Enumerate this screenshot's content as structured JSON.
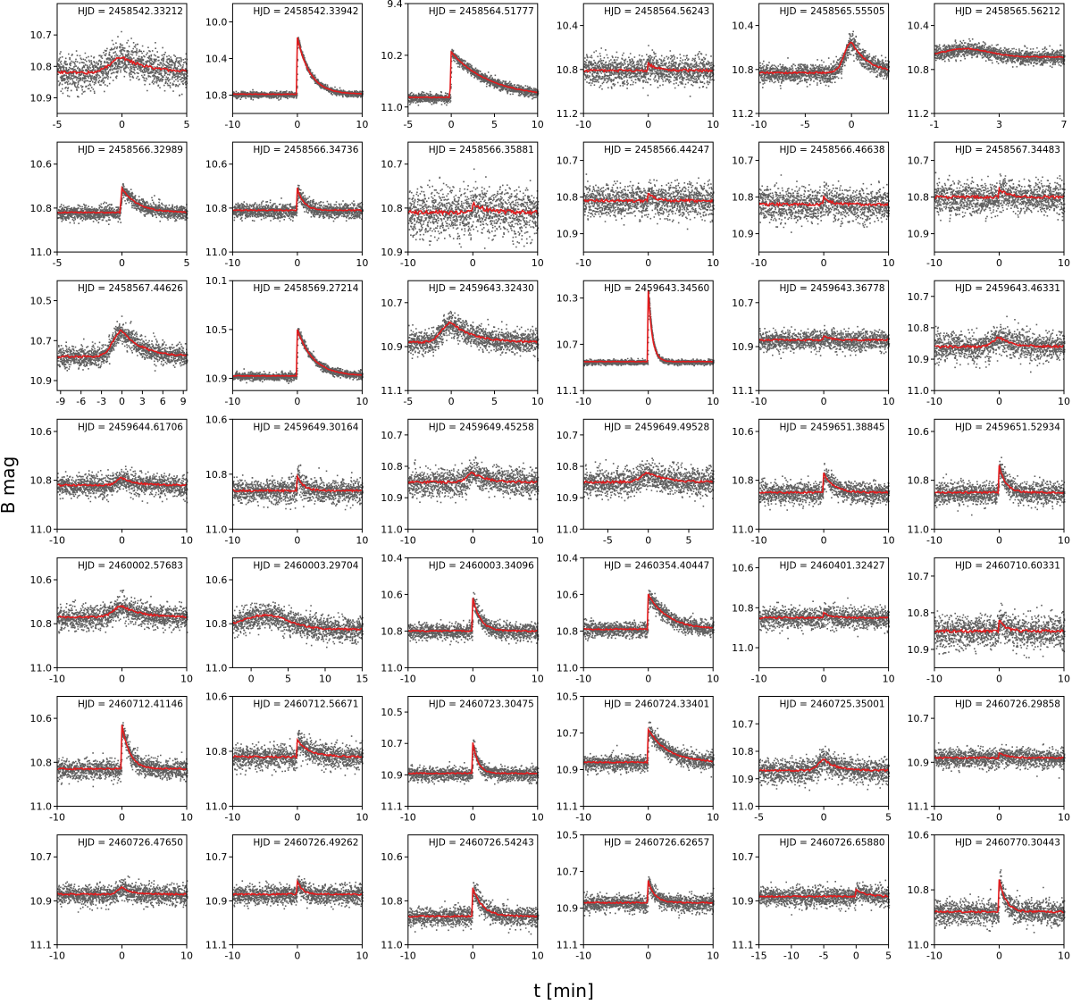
{
  "chart_data": {
    "type": "scatter",
    "ylabel": "B mag",
    "xlabel": "t [min]",
    "y_inverted": true,
    "grid": false,
    "colors": {
      "points": "#5f5f5f",
      "smooth_line": "#e31a1c",
      "frame": "#000000"
    },
    "panels": [
      {
        "label": "HJD = 2458542.33212",
        "xlim": [
          -5,
          5
        ],
        "xticks": [
          -5,
          0,
          5
        ],
        "ylim": [
          10.6,
          10.95
        ],
        "yticks": [
          10.7,
          10.8,
          10.9
        ],
        "base": 10.82,
        "peak": 0.05,
        "scatter": 0.05,
        "shape": "slow",
        "decay": 2.0
      },
      {
        "label": "HJD = 2458542.33942",
        "xlim": [
          -10,
          10
        ],
        "xticks": [
          -10,
          0,
          10
        ],
        "ylim": [
          9.8,
          11.0
        ],
        "yticks": [
          10.0,
          10.4,
          10.8
        ],
        "base": 10.79,
        "peak": 0.62,
        "scatter": 0.03,
        "shape": "fast",
        "decay": 2.0
      },
      {
        "label": "HJD = 2458564.51777",
        "xlim": [
          -5,
          10
        ],
        "xticks": [
          -5,
          0,
          5,
          10
        ],
        "ylim": [
          9.4,
          11.1
        ],
        "yticks": [
          9.4,
          10.2,
          11.0
        ],
        "base": 10.85,
        "peak": 0.7,
        "scatter": 0.07,
        "shape": "fast",
        "decay": 4.5
      },
      {
        "label": "HJD = 2458564.56243",
        "xlim": [
          -10,
          10
        ],
        "xticks": [
          -10,
          0,
          10
        ],
        "ylim": [
          10.2,
          11.2
        ],
        "yticks": [
          10.4,
          10.8,
          11.2
        ],
        "base": 10.81,
        "peak": 0.06,
        "scatter": 0.12,
        "shape": "fast",
        "decay": 1.5
      },
      {
        "label": "HJD = 2458565.55505",
        "xlim": [
          -10,
          4
        ],
        "xticks": [
          -10,
          -5,
          0
        ],
        "ylim": [
          10.2,
          11.2
        ],
        "yticks": [
          10.4,
          10.8,
          11.2
        ],
        "base": 10.83,
        "peak": 0.28,
        "scatter": 0.08,
        "shape": "slow",
        "decay": 1.8
      },
      {
        "label": "HJD = 2458565.56212",
        "xlim": [
          -1,
          7
        ],
        "xticks": [
          -1,
          3,
          7
        ],
        "ylim": [
          10.2,
          11.2
        ],
        "yticks": [
          10.4,
          10.8,
          11.2
        ],
        "base": 10.68,
        "peak": 0.07,
        "scatter": 0.06,
        "shape": "slope",
        "decay": 0
      },
      {
        "label": "HJD = 2458566.32989",
        "xlim": [
          -5,
          5
        ],
        "xticks": [
          -5,
          0,
          5
        ],
        "ylim": [
          10.5,
          11.0
        ],
        "yticks": [
          10.6,
          10.8,
          11.0
        ],
        "base": 10.82,
        "peak": 0.11,
        "scatter": 0.03,
        "shape": "fast",
        "decay": 1.2
      },
      {
        "label": "HJD = 2458566.34736",
        "xlim": [
          -10,
          10
        ],
        "xticks": [
          -10,
          0,
          10
        ],
        "ylim": [
          10.5,
          11.0
        ],
        "yticks": [
          10.6,
          10.8,
          11.0
        ],
        "base": 10.81,
        "peak": 0.1,
        "scatter": 0.03,
        "shape": "fast",
        "decay": 1.0
      },
      {
        "label": "HJD = 2458566.35881",
        "xlim": [
          -10,
          10
        ],
        "xticks": [
          -10,
          0,
          10
        ],
        "ylim": [
          10.65,
          10.9
        ],
        "yticks": [
          10.7,
          10.8,
          10.9
        ],
        "base": 10.81,
        "peak": 0.02,
        "scatter": 0.05,
        "shape": "fast",
        "decay": 2.0
      },
      {
        "label": "HJD = 2458566.44247",
        "xlim": [
          -10,
          10
        ],
        "xticks": [
          -10,
          0,
          10
        ],
        "ylim": [
          10.65,
          10.95
        ],
        "yticks": [
          10.7,
          10.8,
          10.9
        ],
        "base": 10.81,
        "peak": 0.02,
        "scatter": 0.04,
        "shape": "fast",
        "decay": 1.0
      },
      {
        "label": "HJD = 2458566.46638",
        "xlim": [
          -10,
          10
        ],
        "xticks": [
          -10,
          0,
          10
        ],
        "ylim": [
          10.65,
          10.95
        ],
        "yticks": [
          10.7,
          10.8,
          10.9
        ],
        "base": 10.82,
        "peak": 0.02,
        "scatter": 0.04,
        "shape": "fast",
        "decay": 1.0
      },
      {
        "label": "HJD = 2458567.34483",
        "xlim": [
          -10,
          10
        ],
        "xticks": [
          -10,
          0,
          10
        ],
        "ylim": [
          10.65,
          10.95
        ],
        "yticks": [
          10.7,
          10.8,
          10.9
        ],
        "base": 10.8,
        "peak": 0.02,
        "scatter": 0.04,
        "shape": "fast",
        "decay": 1.5
      },
      {
        "label": "HJD = 2458567.44626",
        "xlim": [
          -9.5,
          9.5
        ],
        "xticks": [
          -9,
          -6,
          -3,
          0,
          3,
          6,
          9
        ],
        "ylim": [
          10.4,
          10.95
        ],
        "yticks": [
          10.5,
          10.7,
          10.9
        ],
        "base": 10.78,
        "peak": 0.13,
        "scatter": 0.05,
        "shape": "slow",
        "decay": 3.0
      },
      {
        "label": "HJD = 2458569.27214",
        "xlim": [
          -10,
          10
        ],
        "xticks": [
          -10,
          0,
          10
        ],
        "ylim": [
          10.1,
          11.0
        ],
        "yticks": [
          10.1,
          10.5,
          10.9
        ],
        "base": 10.88,
        "peak": 0.38,
        "scatter": 0.03,
        "shape": "fast",
        "decay": 2.5
      },
      {
        "label": "HJD = 2459643.32430",
        "xlim": [
          -5,
          10
        ],
        "xticks": [
          -5,
          0,
          5,
          10
        ],
        "ylim": [
          10.6,
          11.1
        ],
        "yticks": [
          10.7,
          10.9,
          11.1
        ],
        "base": 10.88,
        "peak": 0.09,
        "scatter": 0.05,
        "shape": "slow",
        "decay": 2.5
      },
      {
        "label": "HJD = 2459643.34560",
        "xlim": [
          -10,
          10
        ],
        "xticks": [
          -10,
          0,
          10
        ],
        "ylim": [
          10.15,
          11.1
        ],
        "yticks": [
          10.3,
          10.7,
          11.1
        ],
        "base": 10.85,
        "peak": 0.62,
        "scatter": 0.02,
        "shape": "fast",
        "decay": 0.6
      },
      {
        "label": "HJD = 2459643.36778",
        "xlim": [
          -10,
          10
        ],
        "xticks": [
          -10,
          0,
          10
        ],
        "ylim": [
          10.6,
          11.1
        ],
        "yticks": [
          10.7,
          10.9,
          11.1
        ],
        "base": 10.87,
        "peak": 0.02,
        "scatter": 0.04,
        "shape": "fast",
        "decay": 1.0
      },
      {
        "label": "HJD = 2459643.46331",
        "xlim": [
          -10,
          10
        ],
        "xticks": [
          -10,
          0,
          10
        ],
        "ylim": [
          10.65,
          11.0
        ],
        "yticks": [
          10.7,
          10.8,
          10.9,
          11.0
        ],
        "base": 10.86,
        "peak": 0.03,
        "scatter": 0.04,
        "shape": "slow",
        "decay": 2.0
      },
      {
        "label": "HJD = 2459644.61706",
        "xlim": [
          -10,
          10
        ],
        "xticks": [
          -10,
          0,
          10
        ],
        "ylim": [
          10.55,
          11.0
        ],
        "yticks": [
          10.6,
          10.8,
          11.0
        ],
        "base": 10.82,
        "peak": 0.03,
        "scatter": 0.04,
        "shape": "slow",
        "decay": 2.0
      },
      {
        "label": "HJD = 2459649.30164",
        "xlim": [
          -10,
          10
        ],
        "xticks": [
          -10,
          0,
          10
        ],
        "ylim": [
          10.6,
          11.0
        ],
        "yticks": [
          10.6,
          10.8,
          11.0
        ],
        "base": 10.86,
        "peak": 0.05,
        "scatter": 0.04,
        "shape": "fast",
        "decay": 1.0
      },
      {
        "label": "HJD = 2459649.45258",
        "xlim": [
          -10,
          10
        ],
        "xticks": [
          -10,
          0,
          10
        ],
        "ylim": [
          10.65,
          11.0
        ],
        "yticks": [
          10.7,
          10.8,
          10.9,
          11.0
        ],
        "base": 10.85,
        "peak": 0.03,
        "scatter": 0.04,
        "shape": "slow",
        "decay": 2.0
      },
      {
        "label": "HJD = 2459649.49528",
        "xlim": [
          -8,
          8
        ],
        "xticks": [
          -5,
          0,
          5
        ],
        "ylim": [
          10.65,
          11.0
        ],
        "yticks": [
          10.7,
          10.8,
          10.9,
          11.0
        ],
        "base": 10.85,
        "peak": 0.03,
        "scatter": 0.04,
        "shape": "slow",
        "decay": 2.0
      },
      {
        "label": "HJD = 2459651.38845",
        "xlim": [
          -10,
          10
        ],
        "xticks": [
          -10,
          0,
          10
        ],
        "ylim": [
          10.55,
          11.0
        ],
        "yticks": [
          10.6,
          10.8,
          11.0
        ],
        "base": 10.85,
        "peak": 0.08,
        "scatter": 0.04,
        "shape": "fast",
        "decay": 1.5
      },
      {
        "label": "HJD = 2459651.52934",
        "xlim": [
          -10,
          10
        ],
        "xticks": [
          -10,
          0,
          10
        ],
        "ylim": [
          10.55,
          11.0
        ],
        "yticks": [
          10.6,
          10.8,
          11.0
        ],
        "base": 10.85,
        "peak": 0.11,
        "scatter": 0.04,
        "shape": "fast",
        "decay": 1.0
      },
      {
        "label": "HJD = 2460002.57683",
        "xlim": [
          -10,
          10
        ],
        "xticks": [
          -10,
          0,
          10
        ],
        "ylim": [
          10.5,
          11.0
        ],
        "yticks": [
          10.6,
          10.8,
          11.0
        ],
        "base": 10.77,
        "peak": 0.05,
        "scatter": 0.05,
        "shape": "slow",
        "decay": 3.0
      },
      {
        "label": "HJD = 2460003.29704",
        "xlim": [
          -2.5,
          15
        ],
        "xticks": [
          0,
          5,
          10,
          15
        ],
        "ylim": [
          10.5,
          11.0
        ],
        "yticks": [
          10.6,
          10.8,
          11.0
        ],
        "base": 10.82,
        "peak": 0.06,
        "scatter": 0.05,
        "shape": "slope",
        "decay": 0
      },
      {
        "label": "HJD = 2460003.34096",
        "xlim": [
          -10,
          10
        ],
        "xticks": [
          -10,
          0,
          10
        ],
        "ylim": [
          10.4,
          11.0
        ],
        "yticks": [
          10.4,
          10.6,
          10.8,
          11.0
        ],
        "base": 10.8,
        "peak": 0.18,
        "scatter": 0.04,
        "shape": "fast",
        "decay": 1.2
      },
      {
        "label": "HJD = 2460354.40447",
        "xlim": [
          -10,
          10
        ],
        "xticks": [
          -10,
          0,
          10
        ],
        "ylim": [
          10.4,
          11.0
        ],
        "yticks": [
          10.4,
          10.6,
          10.8,
          11.0
        ],
        "base": 10.79,
        "peak": 0.19,
        "scatter": 0.04,
        "shape": "fast",
        "decay": 3.0
      },
      {
        "label": "HJD = 2460401.32427",
        "xlim": [
          -10,
          10
        ],
        "xticks": [
          -10,
          0,
          10
        ],
        "ylim": [
          10.55,
          11.1
        ],
        "yticks": [
          10.6,
          10.8,
          11.0
        ],
        "base": 10.85,
        "peak": 0.03,
        "scatter": 0.05,
        "shape": "fast",
        "decay": 1.0
      },
      {
        "label": "HJD = 2460710.60331",
        "xlim": [
          -10,
          10
        ],
        "xticks": [
          -10,
          0,
          10
        ],
        "ylim": [
          10.65,
          10.95
        ],
        "yticks": [
          10.7,
          10.8,
          10.9
        ],
        "base": 10.85,
        "peak": 0.03,
        "scatter": 0.04,
        "shape": "fast",
        "decay": 1.0
      },
      {
        "label": "HJD = 2460712.41146",
        "xlim": [
          -10,
          10
        ],
        "xticks": [
          -10,
          0,
          10
        ],
        "ylim": [
          10.5,
          11.0
        ],
        "yticks": [
          10.6,
          10.8,
          11.0
        ],
        "base": 10.83,
        "peak": 0.2,
        "scatter": 0.04,
        "shape": "fast",
        "decay": 1.2
      },
      {
        "label": "HJD = 2460712.56671",
        "xlim": [
          -10,
          10
        ],
        "xticks": [
          -10,
          0,
          10
        ],
        "ylim": [
          10.6,
          11.0
        ],
        "yticks": [
          10.6,
          10.8,
          11.0
        ],
        "base": 10.82,
        "peak": 0.06,
        "scatter": 0.04,
        "shape": "fast",
        "decay": 2.0
      },
      {
        "label": "HJD = 2460723.30475",
        "xlim": [
          -10,
          10
        ],
        "xticks": [
          -10,
          0,
          10
        ],
        "ylim": [
          10.4,
          11.1
        ],
        "yticks": [
          10.5,
          10.7,
          10.9,
          11.1
        ],
        "base": 10.89,
        "peak": 0.2,
        "scatter": 0.04,
        "shape": "fast",
        "decay": 0.8
      },
      {
        "label": "HJD = 2460724.33401",
        "xlim": [
          -10,
          10
        ],
        "xticks": [
          -10,
          0,
          10
        ],
        "ylim": [
          10.5,
          11.1
        ],
        "yticks": [
          10.5,
          10.7,
          10.9,
          11.1
        ],
        "base": 10.86,
        "peak": 0.18,
        "scatter": 0.04,
        "shape": "fast",
        "decay": 3.0
      },
      {
        "label": "HJD = 2460725.35001",
        "xlim": [
          -5,
          5
        ],
        "xticks": [
          -5,
          0,
          5
        ],
        "ylim": [
          10.6,
          11.0
        ],
        "yticks": [
          10.7,
          10.8,
          10.9,
          11.0
        ],
        "base": 10.87,
        "peak": 0.04,
        "scatter": 0.04,
        "shape": "slow",
        "decay": 1.0
      },
      {
        "label": "HJD = 2460726.29858",
        "xlim": [
          -10,
          10
        ],
        "xticks": [
          -10,
          0,
          10
        ],
        "ylim": [
          10.6,
          11.1
        ],
        "yticks": [
          10.7,
          10.9,
          11.1
        ],
        "base": 10.88,
        "peak": 0.02,
        "scatter": 0.04,
        "shape": "fast",
        "decay": 1.5
      },
      {
        "label": "HJD = 2460726.47650",
        "xlim": [
          -10,
          10
        ],
        "xticks": [
          -10,
          0,
          10
        ],
        "ylim": [
          10.6,
          11.1
        ],
        "yticks": [
          10.7,
          10.9,
          11.1
        ],
        "base": 10.87,
        "peak": 0.03,
        "scatter": 0.04,
        "shape": "slow",
        "decay": 1.5
      },
      {
        "label": "HJD = 2460726.49262",
        "xlim": [
          -10,
          10
        ],
        "xticks": [
          -10,
          0,
          10
        ],
        "ylim": [
          10.6,
          11.1
        ],
        "yticks": [
          10.7,
          10.9,
          11.1
        ],
        "base": 10.87,
        "peak": 0.06,
        "scatter": 0.04,
        "shape": "fast",
        "decay": 0.8
      },
      {
        "label": "HJD = 2460726.54243",
        "xlim": [
          -10,
          10
        ],
        "xticks": [
          -10,
          0,
          10
        ],
        "ylim": [
          10.5,
          11.0
        ],
        "yticks": [
          10.6,
          10.8,
          11.0
        ],
        "base": 10.87,
        "peak": 0.13,
        "scatter": 0.04,
        "shape": "fast",
        "decay": 1.5
      },
      {
        "label": "HJD = 2460726.62657",
        "xlim": [
          -10,
          10
        ],
        "xticks": [
          -10,
          0,
          10
        ],
        "ylim": [
          10.5,
          11.1
        ],
        "yticks": [
          10.5,
          10.7,
          10.9,
          11.1
        ],
        "base": 10.87,
        "peak": 0.12,
        "scatter": 0.04,
        "shape": "fast",
        "decay": 1.0
      },
      {
        "label": "HJD = 2460726.65880",
        "xlim": [
          -15,
          5
        ],
        "xticks": [
          -15,
          -10,
          -5,
          0,
          5
        ],
        "ylim": [
          10.6,
          11.1
        ],
        "yticks": [
          10.7,
          10.9,
          11.1
        ],
        "base": 10.88,
        "peak": 0.03,
        "scatter": 0.04,
        "shape": "fast",
        "decay": 1.5
      },
      {
        "label": "HJD = 2460770.30443",
        "xlim": [
          -10,
          10
        ],
        "xticks": [
          -10,
          0,
          10
        ],
        "ylim": [
          10.6,
          11.0
        ],
        "yticks": [
          10.6,
          10.8,
          11.0
        ],
        "base": 10.88,
        "peak": 0.12,
        "scatter": 0.04,
        "shape": "fast",
        "decay": 1.0
      }
    ]
  }
}
